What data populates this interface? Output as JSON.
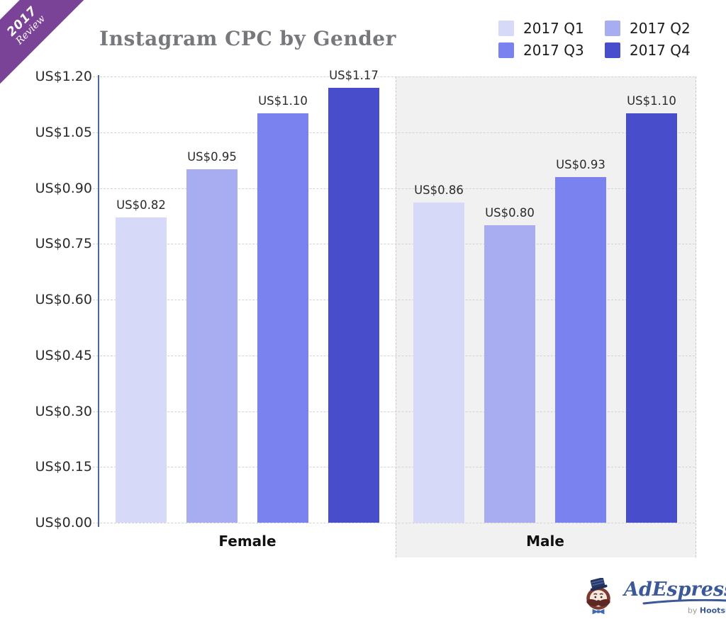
{
  "ribbon": {
    "line1": "2017",
    "line2": "Review",
    "color": "#7b4397"
  },
  "title": "Instagram CPC by Gender",
  "chart_data": {
    "type": "bar",
    "title": "Instagram CPC by Gender",
    "categories": [
      "Female",
      "Male"
    ],
    "series": [
      {
        "name": "2017 Q1",
        "color": "#d7d9f8",
        "values": [
          0.82,
          0.86
        ]
      },
      {
        "name": "2017 Q2",
        "color": "#a8adf2",
        "values": [
          0.95,
          0.8
        ]
      },
      {
        "name": "2017 Q3",
        "color": "#7a82f0",
        "values": [
          1.1,
          0.93
        ]
      },
      {
        "name": "2017 Q4",
        "color": "#474dcb",
        "values": [
          1.17,
          1.1
        ]
      }
    ],
    "data_labels": [
      [
        "US$0.82",
        "US$0.95",
        "US$1.10",
        "US$1.17"
      ],
      [
        "US$0.86",
        "US$0.80",
        "US$0.93",
        "US$1.10"
      ]
    ],
    "y_ticks": [
      {
        "label": "US$0.00",
        "value": 0.0
      },
      {
        "label": "US$0.15",
        "value": 0.15
      },
      {
        "label": "US$0.30",
        "value": 0.3
      },
      {
        "label": "US$0.45",
        "value": 0.45
      },
      {
        "label": "US$0.60",
        "value": 0.6
      },
      {
        "label": "US$0.75",
        "value": 0.75
      },
      {
        "label": "US$0.90",
        "value": 0.9
      },
      {
        "label": "US$1.05",
        "value": 1.05
      },
      {
        "label": "US$1.20",
        "value": 1.2
      }
    ],
    "ylim": [
      0,
      1.2
    ],
    "value_prefix": "US$",
    "grid": true,
    "legend_position": "top-right",
    "highlight_band": {
      "category": "Male",
      "color": "#f1f1f2"
    }
  },
  "footer": {
    "brand_script": "AdEspresso",
    "by": "by ",
    "brand_sub": "Hootsuite",
    "tm": "™"
  },
  "colors": {
    "ribbon_purple": "#7b4397",
    "axis": "#4a6b9a",
    "gridline": "#d2d2d2",
    "title_gray": "#77787c",
    "logo_blue": "#3b5998",
    "band_gray": "#f1f1f2"
  }
}
